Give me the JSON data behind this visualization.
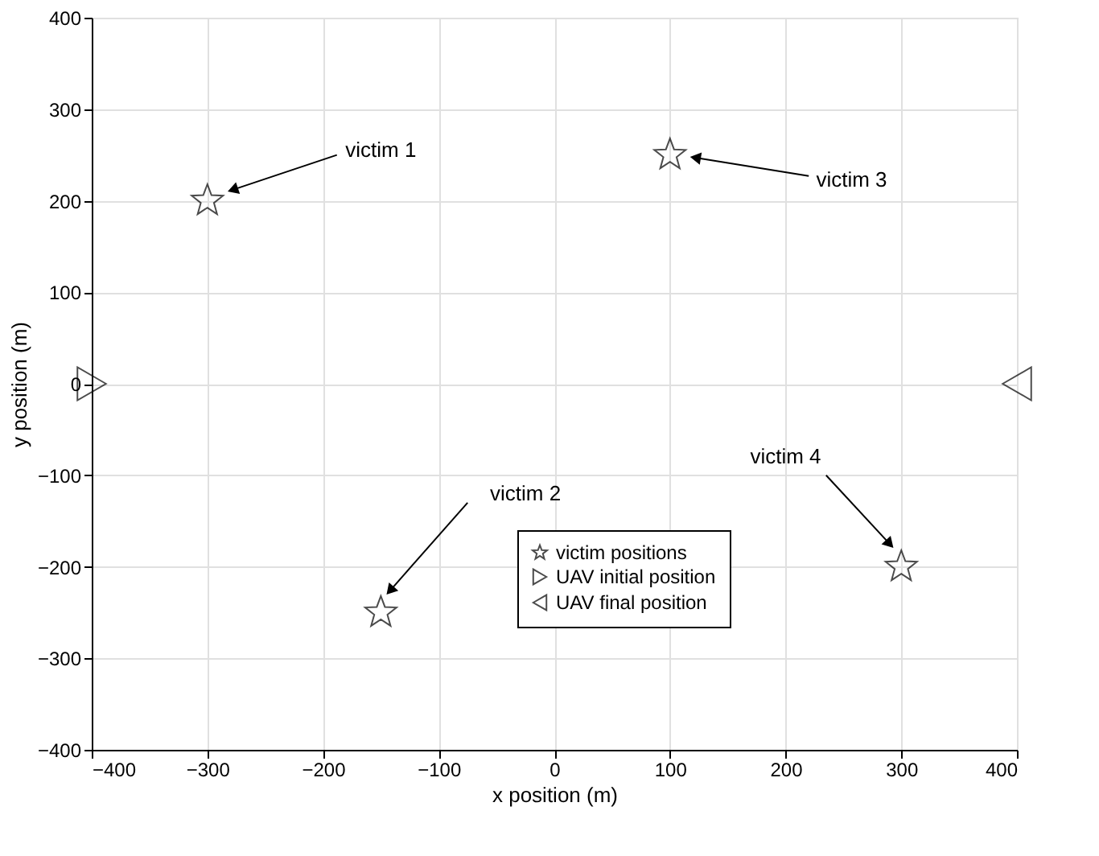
{
  "chart_data": {
    "type": "scatter",
    "xlabel": "x position (m)",
    "ylabel": "y position (m)",
    "xlim": [
      -400,
      400
    ],
    "ylim": [
      -400,
      400
    ],
    "xticks": [
      -400,
      -300,
      -200,
      -100,
      0,
      100,
      200,
      300,
      400
    ],
    "yticks": [
      -400,
      -300,
      -200,
      -100,
      0,
      100,
      200,
      300,
      400
    ],
    "grid": true,
    "legend": "bottom right",
    "series": [
      {
        "name": "victim positions",
        "color": "#000000",
        "marker": "star",
        "x": [
          -300,
          -150,
          100,
          300
        ],
        "values": [
          200,
          -250,
          250,
          -200
        ]
      },
      {
        "name": "UAV initial position",
        "color": "#000000",
        "marker": "triangle-right",
        "x": [
          -400
        ],
        "values": [
          0
        ]
      },
      {
        "name": "UAV final position",
        "color": "#000000",
        "marker": "triangle-left",
        "x": [
          400
        ],
        "values": [
          0
        ]
      }
    ],
    "annotations": [
      {
        "text": "victim 1",
        "x": -278,
        "y": 212
      },
      {
        "text": "victim 2",
        "x": -142,
        "y": -226
      },
      {
        "text": "victim 3",
        "x": 122,
        "y": 247
      },
      {
        "text": "victim 4",
        "x": 290,
        "y": -175
      }
    ]
  }
}
